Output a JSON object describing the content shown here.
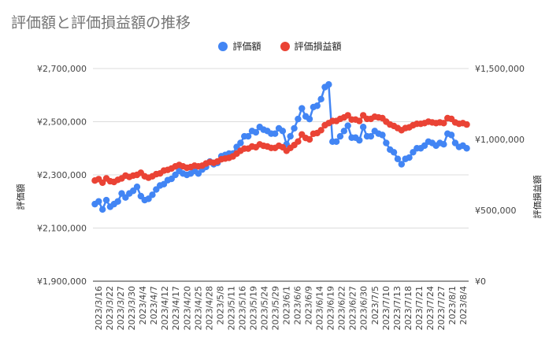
{
  "chart_data": {
    "type": "line",
    "title": "評価額と評価損益額の推移",
    "left_axis": {
      "label": "評価額",
      "ylim": [
        1900000,
        2700000
      ],
      "ticks": [
        1900000,
        2100000,
        2300000,
        2500000,
        2700000
      ],
      "tick_labels": [
        "¥1,900,000",
        "¥2,100,000",
        "¥2,300,000",
        "¥2,500,000",
        "¥2,700,000"
      ]
    },
    "right_axis": {
      "label": "評価損益額",
      "ylim": [
        0,
        1500000
      ],
      "ticks": [
        0,
        500000,
        1000000,
        1500000
      ],
      "tick_labels": [
        "¥0",
        "¥500,000",
        "¥1,000,000",
        "¥1,500,000"
      ]
    },
    "x_tick_labels": [
      "2023/3/16",
      "2023/3/22",
      "2023/3/27",
      "2023/3/30",
      "2023/4/4",
      "2023/4/7",
      "2023/4/12",
      "2023/4/17",
      "2023/4/20",
      "2023/4/25",
      "2023/4/28",
      "2023/5/8",
      "2023/5/11",
      "2023/5/16",
      "2023/5/19",
      "2023/5/24",
      "2023/5/29",
      "2023/6/1",
      "2023/6/6",
      "2023/6/9",
      "2023/6/14",
      "2023/6/19",
      "2023/6/22",
      "2023/6/27",
      "2023/6/30",
      "2023/7/5",
      "2023/7/10",
      "2023/7/13",
      "2023/7/18",
      "2023/7/21",
      "2023/7/24",
      "2023/7/27",
      "2023/8/1",
      "2023/8/4"
    ],
    "legend_position": "top",
    "grid": true,
    "series": [
      {
        "name": "評価額",
        "axis": "left",
        "color": "#4285f4",
        "values": [
          2190000,
          2200000,
          2170000,
          2205000,
          2180000,
          2190000,
          2200000,
          2230000,
          2215000,
          2230000,
          2240000,
          2255000,
          2220000,
          2205000,
          2210000,
          2225000,
          2245000,
          2260000,
          2265000,
          2280000,
          2285000,
          2300000,
          2315000,
          2305000,
          2300000,
          2305000,
          2315000,
          2305000,
          2320000,
          2330000,
          2350000,
          2340000,
          2345000,
          2370000,
          2375000,
          2380000,
          2380000,
          2405000,
          2420000,
          2445000,
          2445000,
          2465000,
          2460000,
          2480000,
          2470000,
          2465000,
          2455000,
          2455000,
          2475000,
          2465000,
          2415000,
          2445000,
          2475000,
          2510000,
          2550000,
          2520000,
          2510000,
          2555000,
          2560000,
          2585000,
          2630000,
          2640000,
          2425000,
          2425000,
          2445000,
          2465000,
          2485000,
          2440000,
          2440000,
          2430000,
          2480000,
          2445000,
          2445000,
          2465000,
          2455000,
          2450000,
          2420000,
          2395000,
          2385000,
          2360000,
          2340000,
          2360000,
          2365000,
          2385000,
          2400000,
          2400000,
          2410000,
          2425000,
          2420000,
          2410000,
          2420000,
          2415000,
          2455000,
          2450000,
          2420000,
          2405000,
          2410000,
          2400000
        ]
      },
      {
        "name": "評価損益額",
        "axis": "right",
        "color": "#ea4335",
        "values": [
          710000,
          720000,
          695000,
          725000,
          705000,
          700000,
          715000,
          725000,
          745000,
          735000,
          745000,
          750000,
          765000,
          740000,
          730000,
          740000,
          755000,
          760000,
          780000,
          785000,
          795000,
          810000,
          820000,
          810000,
          800000,
          805000,
          815000,
          810000,
          815000,
          830000,
          840000,
          835000,
          845000,
          860000,
          865000,
          870000,
          880000,
          900000,
          920000,
          935000,
          935000,
          950000,
          945000,
          965000,
          955000,
          950000,
          940000,
          940000,
          955000,
          945000,
          920000,
          940000,
          960000,
          985000,
          1035000,
          1010000,
          1000000,
          1040000,
          1045000,
          1065000,
          1100000,
          1115000,
          1130000,
          1130000,
          1145000,
          1155000,
          1170000,
          1140000,
          1140000,
          1130000,
          1170000,
          1145000,
          1145000,
          1160000,
          1155000,
          1150000,
          1125000,
          1105000,
          1095000,
          1080000,
          1065000,
          1080000,
          1085000,
          1100000,
          1110000,
          1110000,
          1115000,
          1125000,
          1120000,
          1115000,
          1120000,
          1115000,
          1150000,
          1145000,
          1120000,
          1110000,
          1115000,
          1105000
        ]
      }
    ]
  }
}
